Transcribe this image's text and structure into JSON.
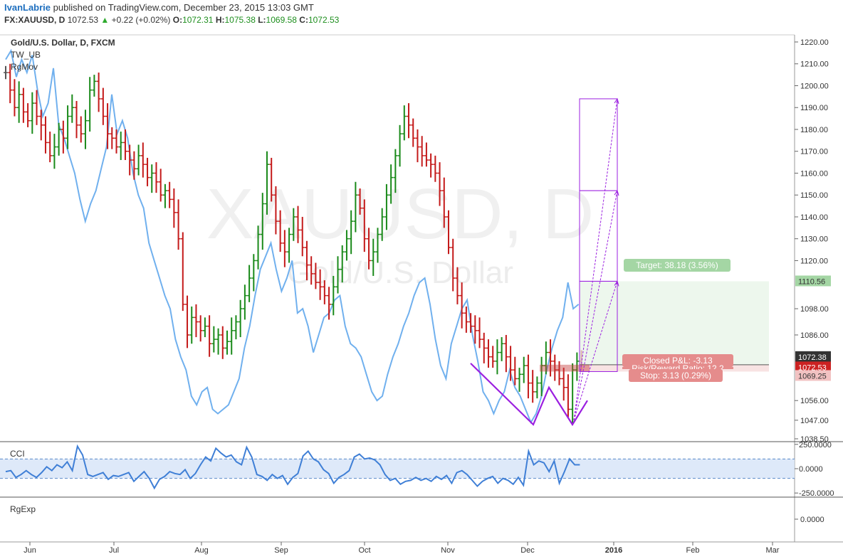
{
  "header": {
    "author": "IvanLabrie",
    "published": "published on TradingView.com, December 23, 2015 13:03 GMT",
    "symbol": "FX:XAUUSD, D",
    "last": "1072.53",
    "change": "+0.22 (+0.02%)",
    "o_label": "O:",
    "o_val": "1072.31",
    "h_label": "H:",
    "h_val": "1075.38",
    "l_label": "L:",
    "l_val": "1069.58",
    "c_label": "C:",
    "c_val": "1072.53"
  },
  "legend": {
    "title": "Gold/U.S. Dollar, D, FXCM",
    "ind1": "TW_UB",
    "ind2": "RgMov"
  },
  "watermark": {
    "big": "XAUUSD, D",
    "small": "Gold/U.S. Dollar"
  },
  "position": {
    "target_label": "Target: 38.18 (3.56%)",
    "pnl_label": "Closed P&L: -3.13",
    "rr_label": "Risk/Reward Ratio: 12.2",
    "stop_label": "Stop: 3.13 (0.29%)"
  },
  "price_tags": {
    "target": "1110.56",
    "high": "1072.38",
    "last": "1072.53",
    "stop": "1069.25"
  },
  "cci_label": "CCI",
  "rgexp_label": "RgExp",
  "rgexp_ticks": [
    "0.0000"
  ],
  "colors": {
    "up": "#1a8a1a",
    "down": "#c41a1a",
    "neutral": "#555555",
    "line": "#70b0ee",
    "cci": "#3f7fd6",
    "pattern": "#9b1fe0"
  },
  "chart_data": {
    "type": "bar",
    "title": "Gold/U.S. Dollar, D, FXCM",
    "price_axis": {
      "ticks": [
        1038.5,
        1047.0,
        1056.0,
        1069.25,
        1072.53,
        1086.0,
        1098.0,
        1110.56,
        1120.0,
        1130.0,
        1140.0,
        1150.0,
        1160.0,
        1170.0,
        1180.0,
        1190.0,
        1200.0,
        1210.0,
        1220.0
      ],
      "tick_labels": [
        "1038.50",
        "1047.00",
        "1056.00",
        "1069.25",
        "1072.53",
        "1086.00",
        "1098.00",
        "1110.56",
        "1120.00",
        "1130.00",
        "1140.00",
        "1150.00",
        "1160.00",
        "1170.00",
        "1180.00",
        "1190.00",
        "1200.00",
        "1210.00",
        "1220.00"
      ],
      "ylim": [
        1035,
        1224
      ]
    },
    "time_axis": {
      "labels": [
        "Jun",
        "Jul",
        "Aug",
        "Sep",
        "Oct",
        "Nov",
        "Dec",
        "2016",
        "Feb",
        "Mar"
      ]
    },
    "ohlc_close": [
      1206,
      1198,
      1190,
      1196,
      1188,
      1184,
      1192,
      1186,
      1182,
      1174,
      1168,
      1172,
      1180,
      1176,
      1186,
      1190,
      1182,
      1178,
      1184,
      1198,
      1202,
      1194,
      1186,
      1178,
      1176,
      1172,
      1174,
      1170,
      1166,
      1162,
      1168,
      1164,
      1158,
      1160,
      1156,
      1150,
      1152,
      1148,
      1142,
      1130,
      1100,
      1086,
      1094,
      1092,
      1088,
      1090,
      1082,
      1084,
      1086,
      1080,
      1083,
      1088,
      1092,
      1098,
      1104,
      1112,
      1120,
      1132,
      1146,
      1164,
      1150,
      1138,
      1128,
      1124,
      1132,
      1140,
      1134,
      1126,
      1118,
      1114,
      1110,
      1108,
      1104,
      1100,
      1108,
      1116,
      1124,
      1130,
      1138,
      1150,
      1144,
      1130,
      1120,
      1124,
      1132,
      1140,
      1150,
      1158,
      1168,
      1178,
      1186,
      1182,
      1176,
      1172,
      1168,
      1166,
      1164,
      1160,
      1152,
      1140,
      1126,
      1112,
      1104,
      1096,
      1092,
      1090,
      1088,
      1084,
      1080,
      1076,
      1074,
      1078,
      1082,
      1076,
      1070,
      1066,
      1068,
      1072,
      1064,
      1060,
      1064,
      1072,
      1078,
      1074,
      1070,
      1066,
      1062,
      1052,
      1070,
      1074,
      1072.53
    ],
    "ma_line": [
      1212,
      1216,
      1204,
      1212,
      1206,
      1214,
      1198,
      1186,
      1192,
      1208,
      1182,
      1176,
      1168,
      1160,
      1148,
      1138,
      1146,
      1152,
      1162,
      1172,
      1196,
      1178,
      1184,
      1176,
      1160,
      1150,
      1144,
      1128,
      1120,
      1112,
      1104,
      1098,
      1084,
      1076,
      1070,
      1058,
      1054,
      1060,
      1062,
      1052,
      1050,
      1052,
      1054,
      1060,
      1066,
      1080,
      1090,
      1104,
      1116,
      1122,
      1128,
      1116,
      1106,
      1112,
      1120,
      1096,
      1098,
      1090,
      1078,
      1086,
      1094,
      1096,
      1102,
      1104,
      1090,
      1082,
      1080,
      1076,
      1068,
      1060,
      1056,
      1058,
      1068,
      1076,
      1082,
      1090,
      1096,
      1104,
      1110,
      1112,
      1100,
      1084,
      1072,
      1066,
      1082,
      1090,
      1098,
      1102,
      1086,
      1074,
      1060,
      1056,
      1050,
      1056,
      1060,
      1070,
      1062,
      1058,
      1052,
      1046,
      1050,
      1058,
      1070,
      1080,
      1088,
      1094,
      1110,
      1098,
      1100
    ],
    "cci": [
      -30,
      -20,
      -90,
      -60,
      -20,
      -60,
      -90,
      -40,
      20,
      -20,
      40,
      10,
      70,
      -20,
      230,
      140,
      -60,
      -80,
      -60,
      -40,
      -110,
      -70,
      -80,
      -60,
      -40,
      -130,
      -80,
      -30,
      -100,
      -200,
      -110,
      -80,
      -30,
      -50,
      -60,
      -10,
      -100,
      -50,
      40,
      120,
      80,
      210,
      160,
      120,
      140,
      70,
      40,
      220,
      120,
      -60,
      -80,
      -120,
      -60,
      -100,
      -70,
      -160,
      -90,
      -50,
      130,
      180,
      100,
      70,
      -10,
      -50,
      -150,
      -90,
      -60,
      -20,
      120,
      150,
      100,
      110,
      90,
      40,
      -60,
      -120,
      -100,
      -160,
      -130,
      -120,
      -90,
      -120,
      -100,
      -130,
      -80,
      -110,
      -70,
      -150,
      -40,
      -20,
      -60,
      -120,
      -180,
      -130,
      -100,
      -80,
      -150,
      -100,
      -120,
      -160,
      -90,
      -170,
      180,
      40,
      80,
      60,
      -30,
      80,
      -150,
      -30,
      100,
      40,
      40
    ],
    "cci_ticks": [
      250,
      0,
      -250
    ],
    "cci_tick_labels": [
      "250.0000",
      "0.0000",
      "-250.0000"
    ],
    "pattern_points": [
      [
        1096,
        1073
      ],
      [
        1046,
        1045
      ],
      [
        1056,
        1062
      ],
      [
        1046,
        1045
      ],
      [
        1062,
        1056
      ]
    ],
    "position_tool": {
      "entry": 1072.38,
      "stop": 1069.25,
      "target": 1110.56
    }
  }
}
